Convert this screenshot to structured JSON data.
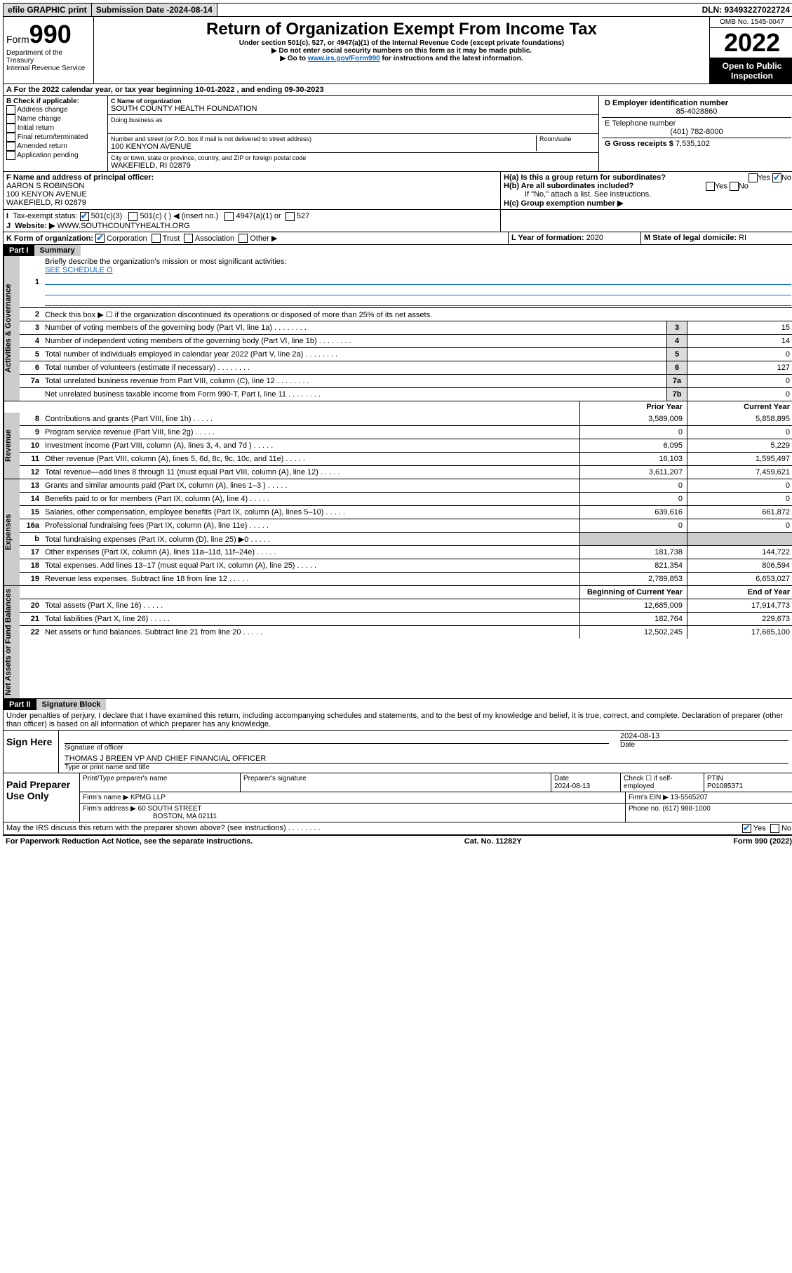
{
  "topbar": {
    "efile": "efile GRAPHIC print",
    "sub_label": "Submission Date - ",
    "sub_date": "2024-08-14",
    "dln": "DLN: 93493227022724"
  },
  "header": {
    "form_pre": "Form",
    "form_num": "990",
    "dept": "Department of the Treasury",
    "irs": "Internal Revenue Service",
    "title": "Return of Organization Exempt From Income Tax",
    "sub1": "Under section 501(c), 527, or 4947(a)(1) of the Internal Revenue Code (except private foundations)",
    "sub2": "▶ Do not enter social security numbers on this form as it may be made public.",
    "sub3_pre": "▶ Go to ",
    "sub3_link": "www.irs.gov/Form990",
    "sub3_post": " for instructions and the latest information.",
    "omb": "OMB No. 1545-0047",
    "year": "2022",
    "open": "Open to Public Inspection"
  },
  "A": {
    "text": "For the 2022 calendar year, or tax year beginning ",
    "begin": "10-01-2022",
    "mid": " , and ending ",
    "end": "09-30-2023"
  },
  "B": {
    "label": "B Check if applicable:",
    "opts": [
      "Address change",
      "Name change",
      "Initial return",
      "Final return/terminated",
      "Amended return",
      "Application pending"
    ]
  },
  "C": {
    "name_label": "C Name of organization",
    "name": "SOUTH COUNTY HEALTH FOUNDATION",
    "dba_label": "Doing business as",
    "addr_label": "Number and street (or P.O. box if mail is not delivered to street address)",
    "room_label": "Room/suite",
    "addr": "100 KENYON AVENUE",
    "city_label": "City or town, state or province, country, and ZIP or foreign postal code",
    "city": "WAKEFIELD, RI  02879"
  },
  "D": {
    "label": "D Employer identification number",
    "val": "85-4028860"
  },
  "E": {
    "label": "E Telephone number",
    "val": "(401) 782-8000"
  },
  "G": {
    "label": "G Gross receipts $ ",
    "val": "7,535,102"
  },
  "F": {
    "label": "F Name and address of principal officer:",
    "name": "AARON S ROBINSON",
    "addr1": "100 KENYON AVENUE",
    "addr2": "WAKEFIELD, RI  02879"
  },
  "H": {
    "a": "H(a)  Is this a group return for subordinates?",
    "b": "H(b)  Are all subordinates included?",
    "note": "If \"No,\" attach a list. See instructions.",
    "c": "H(c)  Group exemption number ▶",
    "yes": "Yes",
    "no": "No"
  },
  "I": {
    "label": "Tax-exempt status:",
    "o1": "501(c)(3)",
    "o2": "501(c) (  ) ◀ (insert no.)",
    "o3": "4947(a)(1) or",
    "o4": "527"
  },
  "J": {
    "label": "Website: ▶",
    "val": "WWW.SOUTHCOUNTYHEALTH.ORG"
  },
  "K": {
    "label": "K Form of organization:",
    "o1": "Corporation",
    "o2": "Trust",
    "o3": "Association",
    "o4": "Other ▶"
  },
  "L": {
    "label": "L Year of formation: ",
    "val": "2020"
  },
  "M": {
    "label": "M State of legal domicile: ",
    "val": "RI"
  },
  "partI": {
    "hdr": "Part I",
    "title": "Summary",
    "l1": "Briefly describe the organization's mission or most significant activities:",
    "l1v": "SEE SCHEDULE O",
    "l2": "Check this box ▶ ☐  if the organization discontinued its operations or disposed of more than 25% of its net assets.",
    "tabs": {
      "ag": "Activities & Governance",
      "rev": "Revenue",
      "exp": "Expenses",
      "na": "Net Assets or Fund Balances"
    },
    "cols": {
      "prior": "Prior Year",
      "curr": "Current Year",
      "beg": "Beginning of Current Year",
      "end": "End of Year"
    },
    "rows": [
      {
        "n": "3",
        "t": "Number of voting members of the governing body (Part VI, line 1a)",
        "box": "3",
        "v": "15"
      },
      {
        "n": "4",
        "t": "Number of independent voting members of the governing body (Part VI, line 1b)",
        "box": "4",
        "v": "14"
      },
      {
        "n": "5",
        "t": "Total number of individuals employed in calendar year 2022 (Part V, line 2a)",
        "box": "5",
        "v": "0"
      },
      {
        "n": "6",
        "t": "Total number of volunteers (estimate if necessary)",
        "box": "6",
        "v": "127"
      },
      {
        "n": "7a",
        "t": "Total unrelated business revenue from Part VIII, column (C), line 12",
        "box": "7a",
        "v": "0"
      },
      {
        "n": "",
        "t": "Net unrelated business taxable income from Form 990-T, Part I, line 11",
        "box": "7b",
        "v": "0"
      }
    ],
    "rev": [
      {
        "n": "8",
        "t": "Contributions and grants (Part VIII, line 1h)",
        "p": "3,589,009",
        "c": "5,858,895"
      },
      {
        "n": "9",
        "t": "Program service revenue (Part VIII, line 2g)",
        "p": "0",
        "c": "0"
      },
      {
        "n": "10",
        "t": "Investment income (Part VIII, column (A), lines 3, 4, and 7d )",
        "p": "6,095",
        "c": "5,229"
      },
      {
        "n": "11",
        "t": "Other revenue (Part VIII, column (A), lines 5, 6d, 8c, 9c, 10c, and 11e)",
        "p": "16,103",
        "c": "1,595,497"
      },
      {
        "n": "12",
        "t": "Total revenue—add lines 8 through 11 (must equal Part VIII, column (A), line 12)",
        "p": "3,611,207",
        "c": "7,459,621"
      }
    ],
    "exp": [
      {
        "n": "13",
        "t": "Grants and similar amounts paid (Part IX, column (A), lines 1–3 )",
        "p": "0",
        "c": "0"
      },
      {
        "n": "14",
        "t": "Benefits paid to or for members (Part IX, column (A), line 4)",
        "p": "0",
        "c": "0"
      },
      {
        "n": "15",
        "t": "Salaries, other compensation, employee benefits (Part IX, column (A), lines 5–10)",
        "p": "639,616",
        "c": "661,872"
      },
      {
        "n": "16a",
        "t": "Professional fundraising fees (Part IX, column (A), line 11e)",
        "p": "0",
        "c": "0"
      },
      {
        "n": "b",
        "t": "Total fundraising expenses (Part IX, column (D), line 25) ▶0",
        "p": "",
        "c": "",
        "nofill": true
      },
      {
        "n": "17",
        "t": "Other expenses (Part IX, column (A), lines 11a–11d, 11f–24e)",
        "p": "181,738",
        "c": "144,722"
      },
      {
        "n": "18",
        "t": "Total expenses. Add lines 13–17 (must equal Part IX, column (A), line 25)",
        "p": "821,354",
        "c": "806,594"
      },
      {
        "n": "19",
        "t": "Revenue less expenses. Subtract line 18 from line 12",
        "p": "2,789,853",
        "c": "6,653,027"
      }
    ],
    "na": [
      {
        "n": "20",
        "t": "Total assets (Part X, line 16)",
        "p": "12,685,009",
        "c": "17,914,773"
      },
      {
        "n": "21",
        "t": "Total liabilities (Part X, line 26)",
        "p": "182,764",
        "c": "229,673"
      },
      {
        "n": "22",
        "t": "Net assets or fund balances. Subtract line 21 from line 20",
        "p": "12,502,245",
        "c": "17,685,100"
      }
    ]
  },
  "partII": {
    "hdr": "Part II",
    "title": "Signature Block",
    "decl": "Under penalties of perjury, I declare that I have examined this return, including accompanying schedules and statements, and to the best of my knowledge and belief, it is true, correct, and complete. Declaration of preparer (other than officer) is based on all information of which preparer has any knowledge."
  },
  "sign": {
    "here": "Sign Here",
    "sig_label": "Signature of officer",
    "date_label": "Date",
    "date": "2024-08-13",
    "name": "THOMAS J BREEN  VP AND CHIEF FINANCIAL OFFICER",
    "name_label": "Type or print name and title"
  },
  "prep": {
    "label": "Paid Preparer Use Only",
    "h1": "Print/Type preparer's name",
    "h2": "Preparer's signature",
    "h3": "Date",
    "h4": "Check ☐ if self-employed",
    "h5": "PTIN",
    "date": "2024-08-13",
    "ptin": "P01085371",
    "firm_label": "Firm's name    ▶",
    "firm": "KPMG LLP",
    "ein_label": "Firm's EIN ▶",
    "ein": "13-5565207",
    "addr_label": "Firm's address ▶",
    "addr1": "60 SOUTH STREET",
    "addr2": "BOSTON, MA  02111",
    "phone_label": "Phone no. ",
    "phone": "(617) 988-1000"
  },
  "bottom": {
    "q": "May the IRS discuss this return with the preparer shown above? (see instructions)",
    "yes": "Yes",
    "no": "No"
  },
  "footer": {
    "l": "For Paperwork Reduction Act Notice, see the separate instructions.",
    "c": "Cat. No. 11282Y",
    "r": "Form 990 (2022)"
  }
}
